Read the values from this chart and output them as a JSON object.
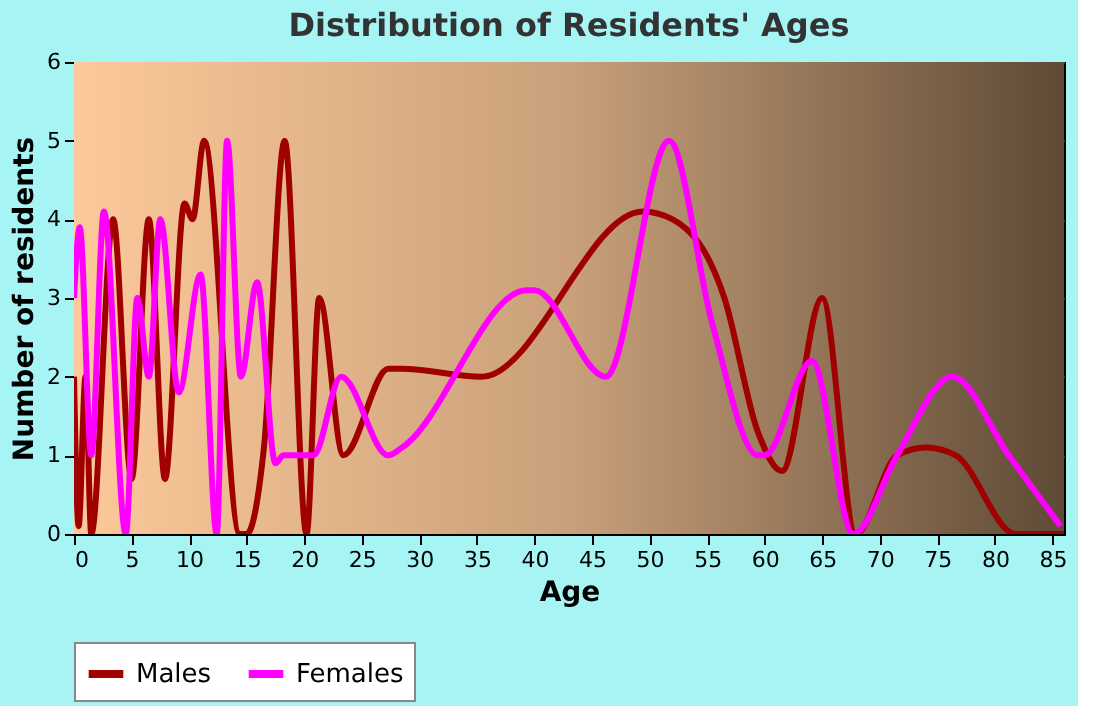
{
  "chart_data": {
    "type": "line",
    "title": "Distribution of Residents' Ages",
    "xlabel": "Age",
    "ylabel": "Number of residents",
    "xlim": [
      0,
      86
    ],
    "xticks": [
      0,
      5,
      10,
      15,
      20,
      25,
      30,
      35,
      40,
      45,
      50,
      55,
      60,
      65,
      70,
      75,
      80,
      85
    ],
    "ylim": [
      0,
      6
    ],
    "yticks": [
      0,
      1,
      2,
      3,
      4,
      5,
      6
    ],
    "grid": true,
    "legend": "bottom",
    "marker": "none",
    "line_style": "solid",
    "series": [
      {
        "name": "Males",
        "color": "#a00000",
        "x": [
          0,
          0.4,
          1.0,
          1.5,
          3.4,
          5.0,
          6.5,
          7.9,
          9.6,
          10.3,
          11.3,
          14.4,
          15.0,
          16.5,
          18.3,
          20.2,
          21.3,
          23.4,
          27.3,
          28.5,
          35.4,
          49.4,
          52.0,
          56.5,
          59.4,
          61.5,
          65.0,
          67.9,
          71.5,
          74.0,
          76.6,
          81.8,
          86.0
        ],
        "values": [
          2.0,
          0.1,
          2.0,
          0.0,
          4.0,
          0.7,
          4.0,
          0.7,
          4.2,
          4.0,
          5.0,
          0.0,
          0.0,
          1.1,
          5.0,
          0.0,
          3.0,
          1.0,
          2.1,
          2.1,
          2.0,
          4.1,
          4.0,
          3.0,
          1.3,
          0.8,
          3.0,
          0.0,
          1.0,
          1.1,
          1.0,
          0.0,
          0.0
        ]
      },
      {
        "name": "Females",
        "color": "#ff00ff",
        "x": [
          0,
          0.5,
          1.5,
          2.6,
          4.5,
          5.5,
          6.5,
          7.5,
          9.1,
          11.0,
          12.4,
          13.3,
          14.5,
          15.9,
          17.5,
          18.2,
          20.8,
          23.2,
          27.3,
          28.5,
          39.3,
          40.0,
          46.2,
          51.7,
          55.4,
          59.4,
          60.0,
          64.1,
          67.7,
          71.5,
          76.3,
          81.2,
          85.7
        ],
        "values": [
          3.0,
          3.9,
          1.0,
          4.1,
          0.0,
          3.0,
          2.0,
          4.0,
          1.8,
          3.3,
          0.0,
          5.0,
          2.0,
          3.2,
          0.9,
          1.0,
          1.0,
          2.0,
          1.0,
          1.1,
          3.1,
          3.1,
          2.0,
          5.0,
          2.7,
          1.0,
          1.0,
          2.2,
          0.0,
          1.0,
          2.0,
          1.0,
          0.1
        ]
      }
    ]
  }
}
